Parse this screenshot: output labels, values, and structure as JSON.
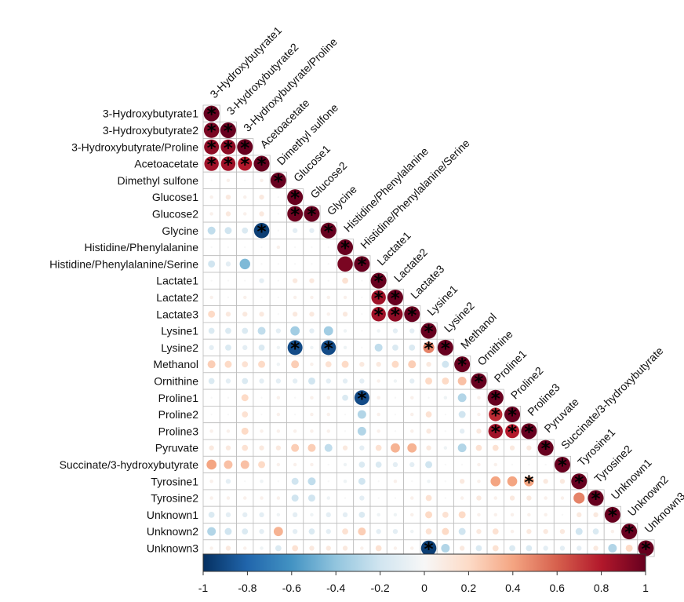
{
  "chart_data": {
    "type": "heatmap",
    "style": "lower-triangle correlation matrix with circles; asterisks mark significance",
    "variables": [
      "3-Hydroxybutyrate1",
      "3-Hydroxybutyrate2",
      "3-Hydroxybutyrate/Proline",
      "Acetoacetate",
      "Dimethyl sulfone",
      "Glucose1",
      "Glucose2",
      "Glycine",
      "Histidine/Phenylalanine",
      "Histidine/Phenylalanine/Serine",
      "Lactate1",
      "Lactate2",
      "Lactate3",
      "Lysine1",
      "Lysine2",
      "Methanol",
      "Ornithine",
      "Proline1",
      "Proline2",
      "Proline3",
      "Pyruvate",
      "Succinate/3-hydroxybutyrate",
      "Tyrosine1",
      "Tyrosine2",
      "Unknown1",
      "Unknown2",
      "Unknown3"
    ],
    "column_labels": [
      "3-Hydroxybutyrate1",
      "3-Hydroxybutyrate2",
      "3-Hydroxybutyrate/Proline",
      "Acetoacetate",
      "Dimethyl sulfone",
      "Glucose1",
      "Glucose2",
      "Glycine",
      "Histidine/Phenylalanine",
      "Histidine/Phenylalanine/Serine",
      "Lactate1",
      "Lactate2",
      "Lactate3",
      "Lysine1",
      "Lysine2",
      "Methanol",
      "Ornithine",
      "Proline1",
      "Proline2",
      "Proline3",
      "Pyruvate",
      "Succinate/3-hydroxybutyrate",
      "Tyrosine1",
      "Tyrosine2",
      "Unknown1",
      "Unknown2",
      "Unknown3"
    ],
    "values": [
      [
        1
      ],
      [
        0.95,
        1
      ],
      [
        0.9,
        0.9,
        1
      ],
      [
        0.85,
        0.85,
        0.8,
        1
      ],
      [
        0.0,
        0.05,
        0.0,
        0.05,
        1
      ],
      [
        0.05,
        0.1,
        0.05,
        0.1,
        0.0,
        1
      ],
      [
        0.05,
        0.1,
        0.05,
        0.1,
        0.0,
        0.98,
        1
      ],
      [
        -0.25,
        -0.2,
        -0.15,
        -0.95,
        0.0,
        -0.1,
        -0.1,
        1
      ],
      [
        0.0,
        0.0,
        0.0,
        0.0,
        0.05,
        0.0,
        0.0,
        0.0,
        1
      ],
      [
        -0.2,
        -0.1,
        -0.45,
        0.0,
        0.0,
        0.0,
        0.0,
        0.0,
        0.95,
        1
      ],
      [
        0.0,
        0.0,
        0.0,
        -0.1,
        0.0,
        0.1,
        0.1,
        0.0,
        0.15,
        0.0,
        1
      ],
      [
        0.05,
        0.0,
        0.05,
        0.0,
        0.0,
        0.05,
        0.05,
        0.05,
        0.05,
        0.0,
        0.85,
        1
      ],
      [
        0.2,
        0.1,
        0.1,
        0.1,
        0.0,
        0.1,
        0.1,
        0.05,
        0.1,
        0.0,
        0.85,
        0.9,
        1
      ],
      [
        -0.15,
        -0.15,
        -0.15,
        -0.25,
        -0.1,
        -0.35,
        -0.1,
        -0.35,
        -0.05,
        0.0,
        -0.05,
        -0.1,
        -0.1,
        1
      ],
      [
        -0.1,
        -0.15,
        -0.1,
        -0.15,
        -0.05,
        -0.9,
        -0.05,
        -0.9,
        -0.05,
        0.0,
        -0.25,
        -0.15,
        -0.15,
        0.5,
        1
      ],
      [
        0.25,
        0.2,
        0.15,
        0.2,
        -0.05,
        0.25,
        0.05,
        0.15,
        0.2,
        0.1,
        0.1,
        0.2,
        0.25,
        0.1,
        -0.2,
        1
      ],
      [
        -0.15,
        -0.1,
        -0.15,
        -0.1,
        -0.1,
        -0.1,
        -0.2,
        -0.1,
        -0.1,
        -0.1,
        0.05,
        -0.05,
        -0.1,
        0.2,
        0.2,
        0.3,
        1
      ],
      [
        0.0,
        0.0,
        0.2,
        0.0,
        0.05,
        0.0,
        0.05,
        0.05,
        -0.15,
        -0.9,
        0.05,
        0.0,
        0.05,
        0.0,
        -0.05,
        -0.3,
        0.05,
        1
      ],
      [
        0.0,
        0.0,
        0.15,
        0.0,
        0.05,
        0.0,
        0.05,
        0.05,
        0.0,
        -0.3,
        0.05,
        0.0,
        0.05,
        0.15,
        0.0,
        -0.2,
        0.05,
        0.75,
        1
      ],
      [
        0.05,
        0.05,
        0.2,
        0.05,
        0.05,
        0.05,
        0.05,
        0.05,
        0.0,
        -0.3,
        0.05,
        0.0,
        0.05,
        0.1,
        0.0,
        -0.1,
        0.1,
        0.85,
        0.8,
        1
      ],
      [
        0.1,
        0.1,
        0.15,
        0.1,
        0.1,
        0.25,
        0.25,
        -0.25,
        0.1,
        -0.1,
        0.15,
        0.35,
        0.35,
        0.1,
        -0.05,
        -0.3,
        0.15,
        0.15,
        0.1,
        0.1,
        1
      ],
      [
        0.4,
        0.3,
        0.3,
        0.2,
        0.05,
        0.05,
        0.05,
        0.0,
        -0.05,
        -0.15,
        -0.15,
        -0.1,
        -0.1,
        -0.2,
        0.0,
        0.0,
        0.05,
        0.05,
        0.0,
        0.0,
        0.0,
        1
      ],
      [
        0.05,
        -0.1,
        0.0,
        -0.05,
        0.0,
        -0.2,
        -0.25,
        0.0,
        -0.05,
        -0.2,
        0.0,
        0.05,
        0.0,
        -0.05,
        0.0,
        0.1,
        0.05,
        0.4,
        0.4,
        0.4,
        0.1,
        0.1,
        1
      ],
      [
        0.05,
        0.05,
        0.05,
        0.05,
        0.05,
        -0.2,
        -0.2,
        -0.05,
        0.0,
        -0.1,
        0.0,
        0.0,
        0.05,
        0.15,
        0.0,
        0.05,
        0.1,
        0.05,
        0.1,
        0.1,
        0.05,
        0.05,
        0.5,
        1
      ],
      [
        -0.15,
        -0.1,
        -0.1,
        -0.1,
        -0.05,
        -0.1,
        -0.05,
        -0.1,
        -0.1,
        -0.15,
        -0.05,
        -0.05,
        0.05,
        0.2,
        0.15,
        0.2,
        0.05,
        0.05,
        0.05,
        0.05,
        0.05,
        0.0,
        0.1,
        0.1,
        1
      ],
      [
        -0.3,
        -0.2,
        -0.15,
        -0.1,
        0.35,
        -0.1,
        -0.15,
        -0.1,
        0.15,
        0.25,
        -0.1,
        -0.1,
        -0.05,
        0.15,
        0.2,
        -0.2,
        0.1,
        0.15,
        0.05,
        0.1,
        0.1,
        0.1,
        -0.2,
        -0.15,
        0.05,
        1
      ],
      [
        0.05,
        0.1,
        0.05,
        -0.05,
        -0.15,
        0.15,
        0.1,
        0.1,
        0.1,
        0.05,
        0.15,
        0.05,
        0.05,
        -0.95,
        -0.3,
        0.1,
        -0.15,
        0.15,
        -0.15,
        -0.15,
        -0.1,
        -0.1,
        -0.1,
        0.1,
        -0.3,
        0.2,
        1
      ]
    ],
    "significant": [
      [
        0,
        0
      ],
      [
        1,
        0
      ],
      [
        1,
        1
      ],
      [
        2,
        0
      ],
      [
        2,
        1
      ],
      [
        2,
        2
      ],
      [
        3,
        0
      ],
      [
        3,
        1
      ],
      [
        3,
        2
      ],
      [
        3,
        3
      ],
      [
        4,
        4
      ],
      [
        5,
        5
      ],
      [
        6,
        5
      ],
      [
        6,
        6
      ],
      [
        7,
        3
      ],
      [
        7,
        7
      ],
      [
        8,
        8
      ],
      [
        9,
        9
      ],
      [
        10,
        10
      ],
      [
        11,
        10
      ],
      [
        11,
        11
      ],
      [
        12,
        10
      ],
      [
        12,
        11
      ],
      [
        12,
        12
      ],
      [
        13,
        13
      ],
      [
        14,
        5
      ],
      [
        14,
        7
      ],
      [
        14,
        13
      ],
      [
        14,
        14
      ],
      [
        15,
        15
      ],
      [
        16,
        16
      ],
      [
        17,
        9
      ],
      [
        17,
        17
      ],
      [
        18,
        17
      ],
      [
        18,
        18
      ],
      [
        19,
        17
      ],
      [
        19,
        18
      ],
      [
        19,
        19
      ],
      [
        20,
        20
      ],
      [
        21,
        21
      ],
      [
        22,
        19
      ],
      [
        22,
        22
      ],
      [
        23,
        23
      ],
      [
        24,
        24
      ],
      [
        25,
        25
      ],
      [
        26,
        13
      ],
      [
        26,
        26
      ]
    ],
    "color_scale": {
      "min": -1,
      "max": 1,
      "stops": [
        "#053061",
        "#2166ac",
        "#4393c3",
        "#92c5de",
        "#d1e5f0",
        "#f7f7f7",
        "#fddbc7",
        "#f4a582",
        "#d6604d",
        "#b2182b",
        "#67001f"
      ],
      "ticks": [
        "-1",
        "-0.8",
        "-0.6",
        "-0.4",
        "-0.2",
        "0",
        "0.2",
        "0.4",
        "0.6",
        "0.8",
        "1"
      ],
      "legend_position": "bottom"
    }
  }
}
